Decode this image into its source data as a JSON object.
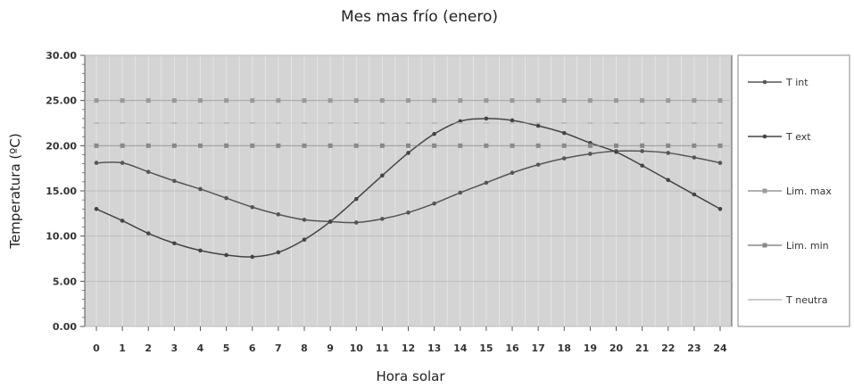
{
  "chart_data": {
    "type": "line",
    "title": "Mes mas frío (enero)",
    "xlabel": "Hora solar",
    "ylabel": "Temperatura (ºC)",
    "x": [
      0,
      1,
      2,
      3,
      4,
      5,
      6,
      7,
      8,
      9,
      10,
      11,
      12,
      13,
      14,
      15,
      16,
      17,
      18,
      19,
      20,
      21,
      22,
      23,
      24
    ],
    "x_tick_labels": [
      "0",
      "1",
      "2",
      "3",
      "4",
      "5",
      "6",
      "7",
      "8",
      "9",
      "10",
      "11",
      "12",
      "13",
      "14",
      "15",
      "16",
      "17",
      "18",
      "19",
      "20",
      "21",
      "22",
      "23",
      "24"
    ],
    "y_tick_labels": [
      "0.00",
      "5.00",
      "10.00",
      "15.00",
      "20.00",
      "25.00",
      "30.00"
    ],
    "ylim": [
      0,
      30
    ],
    "xlim": [
      0,
      24
    ],
    "grid": true,
    "legend_position": "right",
    "series": [
      {
        "name": "T int",
        "color": "#555555",
        "marker": "circle",
        "values": [
          18.1,
          18.1,
          17.1,
          16.1,
          15.2,
          14.2,
          13.2,
          12.4,
          11.8,
          11.6,
          11.5,
          11.9,
          12.6,
          13.6,
          14.8,
          15.9,
          17.0,
          17.9,
          18.6,
          19.1,
          19.4,
          19.4,
          19.2,
          18.7,
          18.1
        ]
      },
      {
        "name": "T ext",
        "color": "#444444",
        "marker": "circle",
        "values": [
          13.0,
          11.7,
          10.3,
          9.2,
          8.4,
          7.9,
          7.7,
          8.2,
          9.6,
          11.6,
          14.1,
          16.7,
          19.2,
          21.3,
          22.7,
          23.0,
          22.8,
          22.2,
          21.4,
          20.3,
          19.3,
          17.8,
          16.2,
          14.6,
          13.0
        ]
      },
      {
        "name": "Lim. max",
        "color": "#999999",
        "marker": "square",
        "values": [
          25,
          25,
          25,
          25,
          25,
          25,
          25,
          25,
          25,
          25,
          25,
          25,
          25,
          25,
          25,
          25,
          25,
          25,
          25,
          25,
          25,
          25,
          25,
          25,
          25
        ]
      },
      {
        "name": "Lim. min",
        "color": "#888888",
        "marker": "square",
        "values": [
          20,
          20,
          20,
          20,
          20,
          20,
          20,
          20,
          20,
          20,
          20,
          20,
          20,
          20,
          20,
          20,
          20,
          20,
          20,
          20,
          20,
          20,
          20,
          20,
          20
        ]
      },
      {
        "name": "T neutra",
        "color": "#bbbbbb",
        "marker": "dash",
        "values": [
          22.5,
          22.5,
          22.5,
          22.5,
          22.5,
          22.5,
          22.5,
          22.5,
          22.5,
          22.5,
          22.5,
          22.5,
          22.5,
          22.5,
          22.5,
          22.5,
          22.5,
          22.5,
          22.5,
          22.5,
          22.5,
          22.5,
          22.5,
          22.5,
          22.5
        ]
      }
    ],
    "colors": {
      "plot_background": "#d4d4d4",
      "grid": "#ffffff",
      "axis": "#555555"
    }
  }
}
